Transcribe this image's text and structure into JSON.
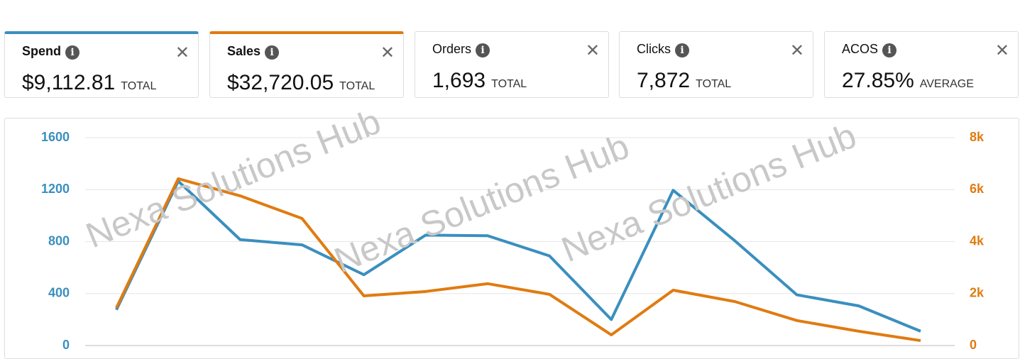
{
  "cards": [
    {
      "label": "Spend",
      "value": "$9,112.81",
      "unit": "TOTAL",
      "accent": "#3a8fbf"
    },
    {
      "label": "Sales",
      "value": "$32,720.05",
      "unit": "TOTAL",
      "accent": "#e07b10"
    },
    {
      "label": "Orders",
      "value": "1,693",
      "unit": "TOTAL"
    },
    {
      "label": "Clicks",
      "value": "7,872",
      "unit": "TOTAL"
    },
    {
      "label": "ACOS",
      "value": "27.85%",
      "unit": "AVERAGE"
    }
  ],
  "watermark": "Nexa Solutions Hub",
  "chart_data": {
    "type": "line",
    "series": [
      {
        "name": "Spend",
        "color": "#3a8fbf",
        "values": [
          275,
          1265,
          815,
          775,
          545,
          850,
          845,
          690,
          200,
          1195,
          805,
          390,
          305,
          110
        ]
      },
      {
        "name": "Sales",
        "color": "#e07b10",
        "axis": "y2",
        "values": [
          1450,
          6420,
          5760,
          4890,
          1910,
          2080,
          2380,
          1970,
          410,
          2130,
          1690,
          960,
          550,
          190
        ]
      }
    ],
    "ylim": [
      0,
      1600
    ],
    "yticks": [
      0,
      400,
      800,
      1200,
      1600
    ],
    "y2lim": [
      0,
      8000
    ],
    "y2ticks": [
      {
        "value": 0,
        "label": "0"
      },
      {
        "value": 2000,
        "label": "2k"
      },
      {
        "value": 4000,
        "label": "4k"
      },
      {
        "value": 6000,
        "label": "6k"
      },
      {
        "value": 8000,
        "label": "8k"
      }
    ],
    "grid": true
  }
}
